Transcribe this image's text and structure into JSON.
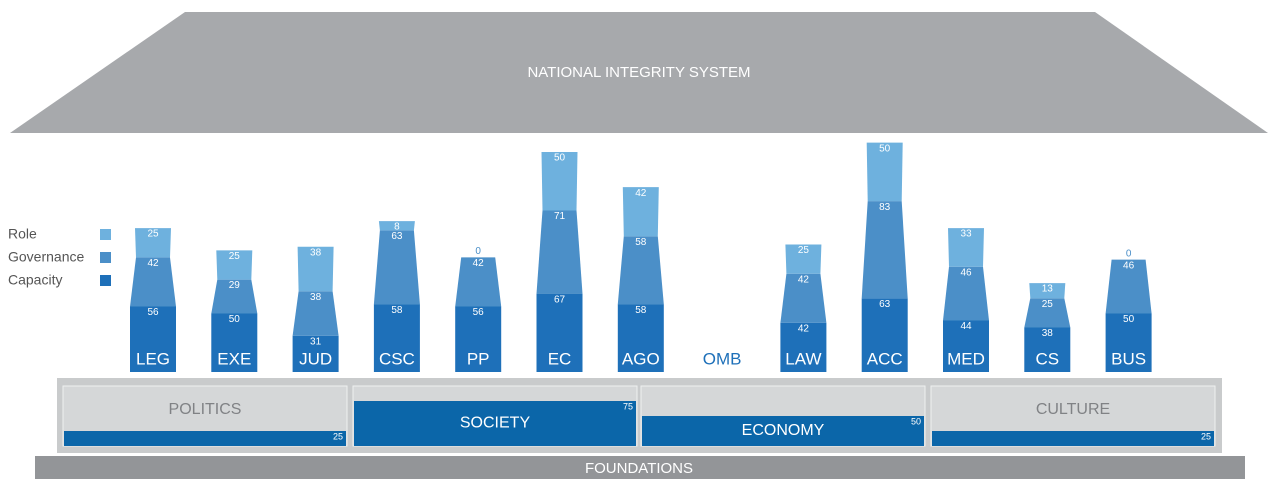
{
  "chart_data": [
    {
      "type": "pillar",
      "title": "NATIONAL INTEGRITY SYSTEM",
      "categories": [
        "LEG",
        "EXE",
        "JUD",
        "CSC",
        "PP",
        "EC",
        "AGO",
        "OMB",
        "LAW",
        "ACC",
        "MED",
        "CS",
        "BUS"
      ],
      "series": [
        {
          "name": "Capacity",
          "color": "#1e70b9",
          "values": [
            56,
            50,
            31,
            58,
            56,
            67,
            58,
            null,
            42,
            63,
            44,
            38,
            50
          ]
        },
        {
          "name": "Governance",
          "color": "#4b8fc8",
          "values": [
            42,
            29,
            38,
            63,
            42,
            71,
            58,
            null,
            42,
            83,
            46,
            25,
            46
          ]
        },
        {
          "name": "Role",
          "color": "#6eb1de",
          "values": [
            25,
            25,
            38,
            8,
            0,
            50,
            42,
            null,
            25,
            50,
            33,
            13,
            0
          ]
        }
      ]
    },
    {
      "type": "foundation",
      "title": "FOUNDATIONS",
      "categories": [
        "POLITICS",
        "SOCIETY",
        "ECONOMY",
        "CULTURE"
      ],
      "values": [
        25,
        75,
        50,
        25
      ],
      "color": "#0b66a9"
    }
  ]
}
